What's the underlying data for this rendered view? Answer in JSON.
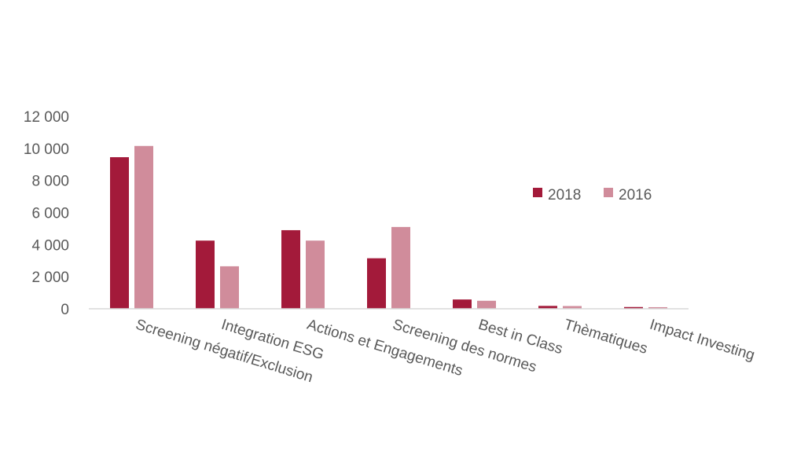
{
  "chart_data": {
    "type": "bar",
    "categories": [
      "Screening négatif/Exclusion",
      "Integration ESG",
      "Actions et Engagements",
      "Screening des normes",
      "Best in Class",
      "Thèmatiques",
      "Impact Investing"
    ],
    "series": [
      {
        "name": "2018",
        "color": "#a31a3a",
        "values": [
          9450,
          4250,
          4900,
          3150,
          580,
          180,
          110
        ]
      },
      {
        "name": "2016",
        "color": "#d08c9b",
        "values": [
          10150,
          2650,
          4250,
          5100,
          500,
          170,
          100
        ]
      }
    ],
    "ylim": [
      0,
      12000
    ],
    "yticks": [
      0,
      2000,
      4000,
      6000,
      8000,
      10000,
      12000
    ],
    "ytick_labels": [
      "0",
      "2 000",
      "4 000",
      "6 000",
      "8 000",
      "10 000",
      "12 000"
    ],
    "grid": false,
    "legend_position": "right"
  }
}
